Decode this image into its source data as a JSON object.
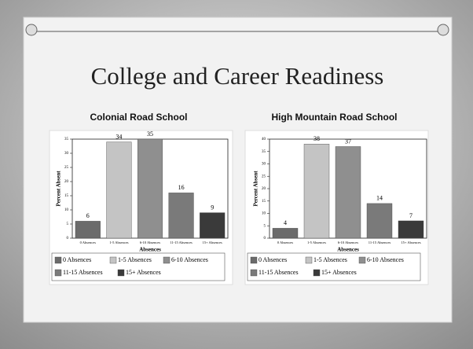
{
  "title": "College and Career Readiness",
  "chart_data": [
    {
      "type": "bar",
      "title": "Colonial Road School",
      "xlabel": "Absences",
      "ylabel": "Percent Absent",
      "categories": [
        "0 Absences",
        "1-5 Absences",
        "6-10 Absences",
        "11-15 Absences",
        "15+ Absences"
      ],
      "values": [
        6,
        34,
        35,
        16,
        9
      ],
      "colors": [
        "#6b6b6b",
        "#c4c4c4",
        "#8f8f8f",
        "#7a7a7a",
        "#3a3a3a"
      ],
      "ylim": [
        0,
        35
      ],
      "yticks": [
        0,
        5,
        10,
        15,
        20,
        25,
        30,
        35
      ],
      "legend": "bottom"
    },
    {
      "type": "bar",
      "title": "High Mountain Road School",
      "xlabel": "Absences",
      "ylabel": "Percent Absent",
      "categories": [
        "0 Absences",
        "1-5 Absences",
        "6-10 Absences",
        "11-15 Absences",
        "15+ Absences"
      ],
      "values": [
        4,
        38,
        37,
        14,
        7
      ],
      "colors": [
        "#6b6b6b",
        "#c4c4c4",
        "#8f8f8f",
        "#7a7a7a",
        "#3a3a3a"
      ],
      "ylim": [
        0,
        40
      ],
      "yticks": [
        0,
        5,
        10,
        15,
        20,
        25,
        30,
        35,
        40
      ],
      "legend": "bottom"
    }
  ]
}
